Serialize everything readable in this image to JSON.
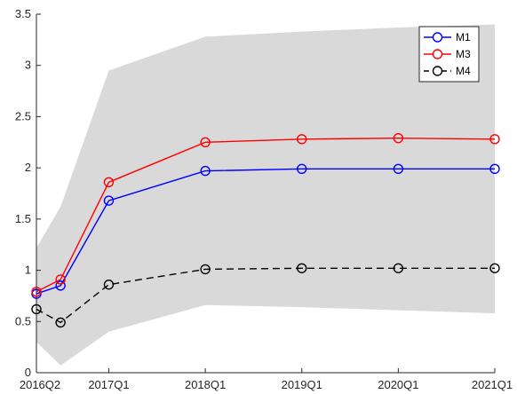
{
  "chart_data": {
    "type": "line",
    "title": "",
    "xlabel": "",
    "ylabel": "",
    "categories": [
      "2016Q2",
      "2016Q3",
      "2017Q1",
      "2018Q1",
      "2019Q1",
      "2020Q1",
      "2021Q1"
    ],
    "x_tick_labels": [
      "2016Q2",
      "2017Q1",
      "2018Q1",
      "2019Q1",
      "2020Q1",
      "2021Q1"
    ],
    "x_quarters": [
      0,
      1,
      3,
      7,
      11,
      15,
      19
    ],
    "x_tick_quarters": [
      0,
      3,
      7,
      11,
      15,
      19
    ],
    "ylim": [
      0,
      3.5
    ],
    "y_ticks": [
      0,
      0.5,
      1,
      1.5,
      2,
      2.5,
      3,
      3.5
    ],
    "y_tick_labels": [
      "0",
      "0.5",
      "1",
      "1.5",
      "2",
      "2.5",
      "3",
      "3.5"
    ],
    "band": {
      "upper": [
        1.22,
        1.62,
        2.95,
        3.28,
        3.33,
        3.37,
        3.4
      ],
      "lower": [
        0.3,
        0.07,
        0.4,
        0.66,
        0.64,
        0.61,
        0.58
      ],
      "color": "#d9d9d9"
    },
    "series": [
      {
        "name": "M1",
        "values": [
          0.77,
          0.85,
          1.68,
          1.97,
          1.99,
          1.99,
          1.99
        ],
        "color": "#0000ff",
        "dash": "solid"
      },
      {
        "name": "M3",
        "values": [
          0.79,
          0.91,
          1.86,
          2.25,
          2.28,
          2.29,
          2.28
        ],
        "color": "#ff0000",
        "dash": "solid"
      },
      {
        "name": "M4",
        "values": [
          0.62,
          0.49,
          0.86,
          1.01,
          1.02,
          1.02,
          1.02
        ],
        "color": "#000000",
        "dash": "dashed"
      }
    ],
    "legend_position": "top-right",
    "grid": false
  }
}
